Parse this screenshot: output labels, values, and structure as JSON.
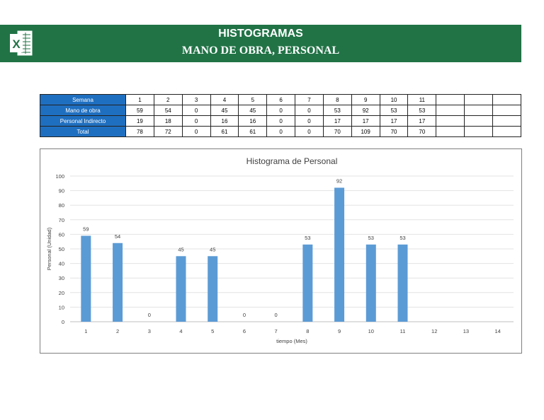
{
  "banner": {
    "title_line1": "HISTOGRAMAS",
    "title_line2": "MANO DE OBRA,  PERSONAL",
    "color": "#217346"
  },
  "table": {
    "rows": [
      {
        "label": "Semana",
        "values": [
          "1",
          "2",
          "3",
          "4",
          "5",
          "6",
          "7",
          "8",
          "9",
          "10",
          "11",
          "",
          "",
          ""
        ]
      },
      {
        "label": "Mano de obra",
        "values": [
          "59",
          "54",
          "0",
          "45",
          "45",
          "0",
          "0",
          "53",
          "92",
          "53",
          "53",
          "",
          "",
          ""
        ]
      },
      {
        "label": "Personal Indirecto",
        "values": [
          "19",
          "18",
          "0",
          "16",
          "16",
          "0",
          "0",
          "17",
          "17",
          "17",
          "17",
          "",
          "",
          ""
        ]
      },
      {
        "label": "Total",
        "values": [
          "78",
          "72",
          "0",
          "61",
          "61",
          "0",
          "0",
          "70",
          "109",
          "70",
          "70",
          "",
          "",
          ""
        ]
      }
    ],
    "header_color": "#1f6fc0"
  },
  "chart_data": {
    "type": "bar",
    "title": "Histograma de Personal",
    "xlabel": "tiempo (Mes)",
    "ylabel": "Personal (Unidad)",
    "categories": [
      "1",
      "2",
      "3",
      "4",
      "5",
      "6",
      "7",
      "8",
      "9",
      "10",
      "11",
      "12",
      "13",
      "14"
    ],
    "values": [
      59,
      54,
      0,
      45,
      45,
      0,
      0,
      53,
      92,
      53,
      53,
      null,
      null,
      null
    ],
    "data_labels": [
      "59",
      "54",
      "0",
      "45",
      "45",
      "0",
      "0",
      "53",
      "92",
      "53",
      "53",
      "",
      "",
      ""
    ],
    "ylim": [
      0,
      100
    ],
    "yticks": [
      0,
      10,
      20,
      30,
      40,
      50,
      60,
      70,
      80,
      90,
      100
    ],
    "grid": true,
    "bar_color": "#5b9bd5"
  }
}
